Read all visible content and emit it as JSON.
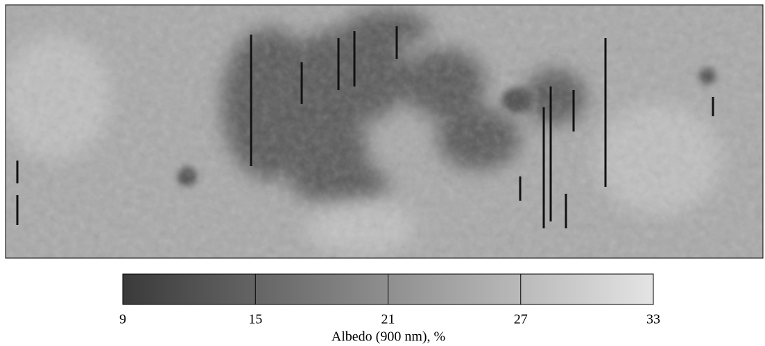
{
  "colorbar": {
    "label": "Albedo (900 nm), %",
    "lim": [
      9,
      33
    ],
    "ticks": [
      9,
      15,
      21,
      27,
      33
    ],
    "colors": [
      "#3a3a3a",
      "#e4e4e4"
    ]
  }
}
